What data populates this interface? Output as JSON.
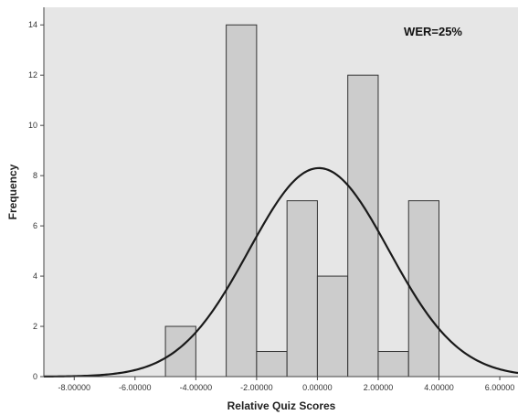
{
  "chart_data": {
    "type": "bar",
    "subtype": "histogram",
    "annotation": "WER=25%",
    "xlabel": "Relative Quiz Scores",
    "ylabel": "Frequency",
    "xlim": [
      -9,
      6.6
    ],
    "ylim": [
      0,
      14.7
    ],
    "x_ticks": [
      -8,
      -6,
      -4,
      -2,
      0,
      2,
      4,
      6
    ],
    "x_tick_labels": [
      "-8.00000",
      "-6.00000",
      "-4.00000",
      "-2.00000",
      "0.00000",
      "2.00000",
      "4.00000",
      "6.00000"
    ],
    "y_ticks": [
      0,
      2,
      4,
      6,
      8,
      10,
      12,
      14
    ],
    "y_tick_labels": [
      "0",
      "2",
      "4",
      "6",
      "8",
      "10",
      "12",
      "14"
    ],
    "bins": [
      {
        "start": -5,
        "end": -4,
        "count": 2
      },
      {
        "start": -4,
        "end": -3,
        "count": 0
      },
      {
        "start": -3,
        "end": -2,
        "count": 14
      },
      {
        "start": -2,
        "end": -1,
        "count": 1
      },
      {
        "start": -1,
        "end": 0,
        "count": 7
      },
      {
        "start": 0,
        "end": 1,
        "count": 4
      },
      {
        "start": 1,
        "end": 2,
        "count": 12
      },
      {
        "start": 2,
        "end": 3,
        "count": 1
      },
      {
        "start": 3,
        "end": 4,
        "count": 7
      }
    ],
    "normal_curve": {
      "mean": 0.05,
      "std": 2.3,
      "peak": 8.3
    },
    "grid": false,
    "colors": {
      "plot_background": "#e6e6e6",
      "bar_fill": "#cccccc",
      "bar_stroke": "#333333",
      "curve": "#1a1a1a",
      "axis": "#444444"
    }
  }
}
